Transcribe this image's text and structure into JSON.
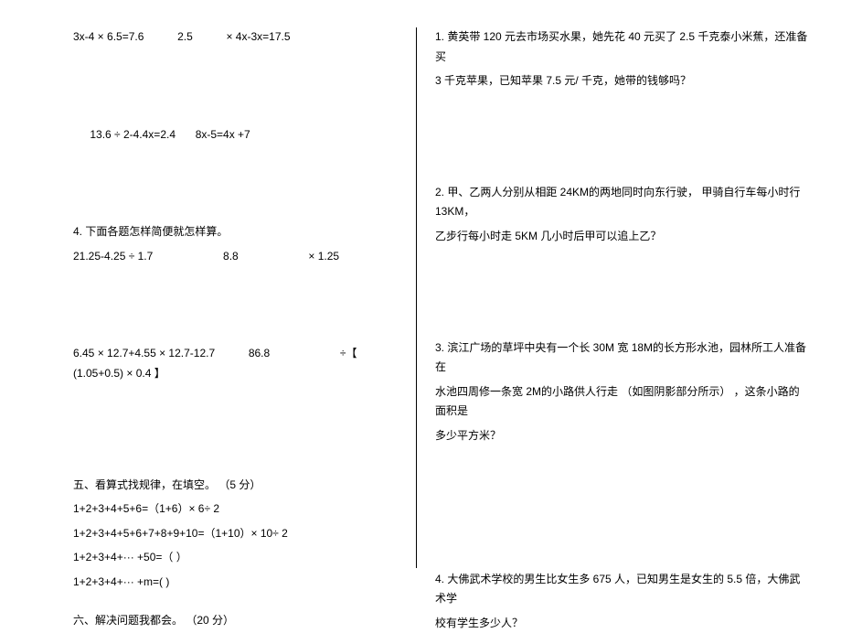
{
  "left": {
    "eq1a": "3x-4 × 6.5=7.6",
    "eq1b": "2.5",
    "eq1c": "× 4x-3x=17.5",
    "eq2a": "13.6  ÷ 2-4.4x=2.4",
    "eq2b": "8x-5=4x +7",
    "section4_title": "4. 下面各题怎样简便就怎样算。",
    "eq3a": "21.25-4.25   ÷ 1.7",
    "eq3b": "8.8",
    "eq3c": "× 1.25",
    "eq4a": "6.45 × 12.7+4.55  × 12.7-12.7",
    "eq4b": "86.8",
    "eq4c": "÷【 (1.05+0.5)    × 0.4 】",
    "section5_title": "五、看算式找规律，在填空。   （5 分）",
    "s5_line1": "1+2+3+4+5+6=（1+6）× 6÷ 2",
    "s5_line2": "1+2+3+4+5+6+7+8+9+10=（1+10）× 10÷ 2",
    "s5_line3": "1+2+3+4+··· +50=（                       ）",
    "s5_line4": "1+2+3+4+··· +m=(                          )",
    "section6_title": "六、解决问题我都会。   （20 分）"
  },
  "right": {
    "q1_a": "1. 黄英带   120 元去市场买水果，她先花     40 元买了  2.5  千克泰小米蕉，还准备买",
    "q1_b": "3 千克苹果，已知苹果    7.5  元/ 千克，她带的钱够吗？",
    "q2_a": "2. 甲、乙两人分别从相距     24KM的两地同时向东行驶，   甲骑自行车每小时行    13KM，",
    "q2_b": "乙步行每小时走    5KM  几小时后甲可以追上乙？",
    "q3_a": "3. 滨江广场的草坪中央有一个长     30M  宽  18M的长方形水池，园林所工人准备在",
    "q3_b": "水池四周修一条宽    2M的小路供人行走  （如图阴影部分所示）  ，这条小路的面积是",
    "q3_c": "多少平方米？",
    "q4_a": "4. 大佛武术学校的男生比女生多     675 人，已知男生是女生的    5.5  倍，大佛武术学",
    "q4_b": "校有学生多少人？"
  }
}
